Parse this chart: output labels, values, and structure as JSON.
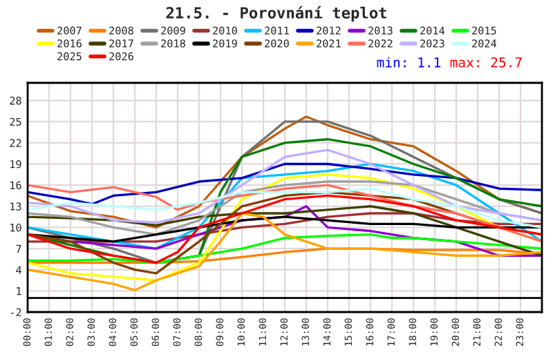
{
  "chart_data": {
    "type": "line",
    "title": "21.5. - Porovnání teplot",
    "annotations": [
      "min: 1.1",
      "max: 25.7"
    ],
    "xlim": [
      0,
      24
    ],
    "xticks": [
      {
        "value": 0,
        "label": "00:00"
      },
      {
        "value": 1,
        "label": "01:00"
      },
      {
        "value": 2,
        "label": "02:00"
      },
      {
        "value": 3,
        "label": "03:00"
      },
      {
        "value": 4,
        "label": "04:00"
      },
      {
        "value": 5,
        "label": "05:00"
      },
      {
        "value": 6,
        "label": "06:00"
      },
      {
        "value": 7,
        "label": "07:00"
      },
      {
        "value": 8,
        "label": "08:00"
      },
      {
        "value": 9,
        "label": "09:00"
      },
      {
        "value": 10,
        "label": "10:00"
      },
      {
        "value": 11,
        "label": "11:00"
      },
      {
        "value": 12,
        "label": "12:00"
      },
      {
        "value": 13,
        "label": "13:00"
      },
      {
        "value": 14,
        "label": "14:00"
      },
      {
        "value": 15,
        "label": "15:00"
      },
      {
        "value": 16,
        "label": "16:00"
      },
      {
        "value": 17,
        "label": "17:00"
      },
      {
        "value": 18,
        "label": "18:00"
      },
      {
        "value": 19,
        "label": "19:00"
      },
      {
        "value": 20,
        "label": "20:00"
      },
      {
        "value": 21,
        "label": "21:00"
      },
      {
        "value": 22,
        "label": "22:00"
      },
      {
        "value": 23,
        "label": "23:00"
      }
    ],
    "ylim": [
      -2,
      30.5
    ],
    "yticks": [
      -2,
      1,
      4,
      7,
      10,
      13,
      16,
      19,
      22,
      25,
      28
    ],
    "grid": true,
    "legend": "top",
    "marker": "none",
    "line_style": "solid",
    "ref_lines": [
      {
        "axis": "y",
        "value": 0,
        "color": "#000000"
      }
    ],
    "series": [
      {
        "name": "2007",
        "color": "#c0600f",
        "x": [
          0,
          2,
          4,
          6,
          8,
          10,
          12,
          13,
          14,
          16,
          18,
          20,
          22,
          24
        ],
        "values": [
          14.5,
          12.3,
          11.5,
          10,
          13,
          20,
          24,
          25.7,
          24.5,
          22.5,
          21.5,
          18,
          14,
          12
        ]
      },
      {
        "name": "2008",
        "color": "#ff8000",
        "x": [
          0,
          2,
          4,
          6,
          8,
          10,
          12,
          14,
          16,
          18,
          20,
          22,
          24
        ],
        "values": [
          5,
          5,
          5,
          5,
          5.2,
          5.8,
          6.5,
          7,
          7,
          6.8,
          6.8,
          6.8,
          6.2
        ]
      },
      {
        "name": "2009",
        "color": "#707070",
        "x": [
          0,
          2,
          4,
          6,
          8,
          9,
          10,
          12,
          14,
          16,
          18,
          20,
          22,
          24
        ],
        "values": [
          10,
          8.5,
          7,
          5,
          6,
          13,
          20,
          25,
          25,
          23,
          20,
          17,
          14,
          12
        ]
      },
      {
        "name": "2010",
        "color": "#a03030",
        "x": [
          0,
          2,
          4,
          6,
          8,
          10,
          12,
          14,
          16,
          18,
          20,
          22,
          24
        ],
        "values": [
          8,
          8,
          8,
          8,
          9,
          10,
          10.5,
          11.5,
          12,
          12,
          11,
          10.5,
          10.5
        ]
      },
      {
        "name": "2011",
        "color": "#00c0ff",
        "x": [
          0,
          2,
          4,
          6,
          8,
          10,
          12,
          14,
          16,
          18,
          20,
          22,
          24
        ],
        "values": [
          10,
          9,
          8,
          7,
          10,
          17,
          17.5,
          18,
          19,
          18,
          16,
          12,
          8
        ]
      },
      {
        "name": "2012",
        "color": "#0000c0",
        "x": [
          0,
          2,
          3,
          4,
          6,
          8,
          10,
          12,
          14,
          16,
          18,
          20,
          22,
          24
        ],
        "values": [
          15,
          14,
          13.3,
          14.5,
          15,
          16.5,
          17,
          19,
          19,
          18.3,
          17.5,
          17,
          15.5,
          15.3
        ]
      },
      {
        "name": "2013",
        "color": "#9000d0",
        "x": [
          0,
          2,
          4,
          6,
          8,
          10,
          12,
          13,
          14,
          16,
          18,
          20,
          22,
          24
        ],
        "values": [
          9,
          8,
          7.5,
          7,
          9,
          11,
          11.5,
          13,
          10,
          9.5,
          8.5,
          8,
          6,
          6
        ]
      },
      {
        "name": "2014",
        "color": "#008000",
        "x": [
          0,
          2,
          4,
          6,
          8,
          9,
          10,
          12,
          14,
          16,
          18,
          20,
          22,
          24
        ],
        "values": [
          9,
          7.5,
          6,
          5,
          6,
          15,
          20,
          22,
          22.5,
          21.5,
          19,
          17,
          14,
          13
        ]
      },
      {
        "name": "2015",
        "color": "#00ff00",
        "x": [
          0,
          2,
          4,
          6,
          8,
          10,
          12,
          14,
          16,
          17,
          18,
          20,
          22,
          24
        ],
        "values": [
          5.3,
          5.3,
          5.5,
          5,
          6,
          7,
          8.5,
          8.8,
          9,
          8.5,
          8.5,
          8,
          7.5,
          7
        ]
      },
      {
        "name": "2016",
        "color": "#ffff00",
        "x": [
          0,
          2,
          4,
          6,
          8,
          10,
          12,
          14,
          16,
          18,
          20,
          22,
          24
        ],
        "values": [
          5,
          3.5,
          3,
          2.5,
          5,
          14,
          17,
          17.5,
          17,
          15.5,
          13,
          10,
          8
        ]
      },
      {
        "name": "2017",
        "color": "#404000",
        "x": [
          0,
          2,
          4,
          6,
          8,
          10,
          12,
          14,
          16,
          18,
          20,
          22,
          24
        ],
        "values": [
          11.5,
          11.3,
          11,
          10.3,
          11.5,
          12,
          12,
          12.5,
          13,
          12,
          10,
          8,
          6
        ]
      },
      {
        "name": "2018",
        "color": "#a0a0a0",
        "x": [
          0,
          2,
          4,
          6,
          8,
          10,
          12,
          14,
          16,
          18,
          20,
          22,
          24
        ],
        "values": [
          12,
          11.5,
          10,
          9,
          11,
          15,
          16,
          16.5,
          16.5,
          16,
          14,
          12,
          11
        ]
      },
      {
        "name": "2019",
        "color": "#000000",
        "x": [
          0,
          2,
          4,
          6,
          8,
          10,
          12,
          14,
          16,
          18,
          20,
          22,
          24
        ],
        "values": [
          9,
          8.5,
          8,
          9,
          10,
          11,
          11.5,
          11,
          10.5,
          10.5,
          10,
          10,
          10
        ]
      },
      {
        "name": "2020",
        "color": "#804000",
        "x": [
          0,
          2,
          4,
          5,
          6,
          8,
          10,
          12,
          14,
          16,
          18,
          20,
          22,
          24
        ],
        "values": [
          9,
          8,
          5,
          4,
          3.5,
          8,
          13,
          14.5,
          15,
          14.5,
          14,
          12,
          10,
          9
        ]
      },
      {
        "name": "2021",
        "color": "#ffa500",
        "x": [
          0,
          2,
          4,
          5,
          6,
          8,
          9,
          10,
          11,
          12,
          14,
          16,
          18,
          20,
          22,
          24
        ],
        "values": [
          4,
          3,
          2,
          1.1,
          2.5,
          4.5,
          8,
          12,
          11.5,
          9,
          7,
          7,
          6.5,
          6,
          6,
          6.5
        ]
      },
      {
        "name": "2022",
        "color": "#ff7060",
        "x": [
          0,
          2,
          4,
          6,
          7,
          8,
          10,
          12,
          14,
          16,
          18,
          20,
          22,
          24
        ],
        "values": [
          16,
          15,
          15.7,
          14.3,
          12.5,
          13.5,
          14.5,
          15.5,
          16,
          14.5,
          13,
          12,
          10,
          8
        ]
      },
      {
        "name": "2023",
        "color": "#c0b0ff",
        "x": [
          0,
          2,
          4,
          6,
          8,
          10,
          12,
          14,
          16,
          18,
          20,
          22,
          24
        ],
        "values": [
          13.5,
          13,
          11,
          10.7,
          12,
          16,
          20,
          21,
          19,
          16,
          13,
          12,
          11
        ]
      },
      {
        "name": "2024",
        "color": "#c0ffff",
        "x": [
          0,
          2,
          4,
          6,
          8,
          10,
          12,
          14,
          16,
          18,
          20,
          22,
          24
        ],
        "values": [
          12.5,
          13.5,
          13,
          12.5,
          13.5,
          15,
          15,
          15,
          15.5,
          14,
          13,
          11,
          10
        ]
      },
      {
        "name": "2025"
      },
      {
        "name": "2026",
        "color": "#ff0000",
        "x": [
          0,
          2,
          4,
          6,
          7,
          8,
          10,
          12,
          14,
          16,
          18,
          20,
          22,
          24
        ],
        "values": [
          9,
          7,
          6,
          5,
          6.5,
          10,
          12,
          14,
          14.5,
          14,
          13,
          11,
          10,
          9
        ]
      }
    ]
  }
}
